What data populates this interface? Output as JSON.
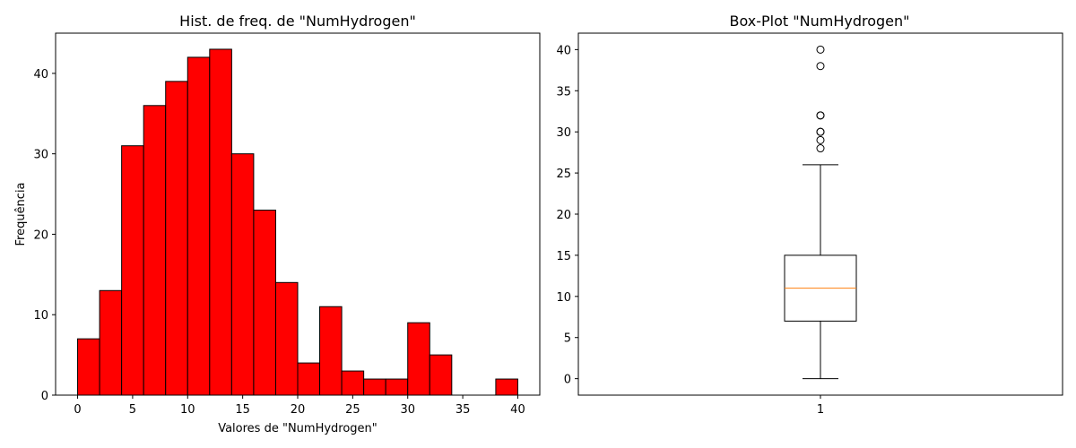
{
  "colors": {
    "bar_fill": "#ff0000",
    "bar_edge": "#000000",
    "median": "#ff7f0e",
    "box": "#000000"
  },
  "chart_data": [
    {
      "type": "bar",
      "title": "Hist. de freq. de \"NumHydrogen\"",
      "xlabel": "Valores de \"NumHydrogen\"",
      "ylabel": "Frequência",
      "xlim": [
        -2,
        42
      ],
      "ylim": [
        0,
        45
      ],
      "xticks": [
        0,
        5,
        10,
        15,
        20,
        25,
        30,
        35,
        40
      ],
      "yticks": [
        0,
        10,
        20,
        30,
        40
      ],
      "bin_edges": [
        0,
        2,
        4,
        6,
        8,
        10,
        12,
        14,
        16,
        18,
        20,
        22,
        24,
        26,
        28,
        30,
        32,
        34,
        36,
        38,
        40
      ],
      "values": [
        7,
        13,
        31,
        36,
        39,
        42,
        43,
        30,
        23,
        14,
        4,
        11,
        3,
        2,
        2,
        9,
        5,
        0,
        0,
        2
      ],
      "grid": false
    },
    {
      "type": "box",
      "title": "Box-Plot \"NumHydrogen\"",
      "xlabel": "",
      "ylabel": "",
      "ylim": [
        -2,
        42
      ],
      "yticks": [
        0,
        5,
        10,
        15,
        20,
        25,
        30,
        35,
        40
      ],
      "xticks": [
        "1"
      ],
      "whisker_low": 0,
      "q1": 7,
      "median": 11,
      "q3": 15,
      "whisker_high": 26,
      "outliers": [
        28,
        29,
        30,
        30,
        32,
        32,
        38,
        40
      ],
      "grid": false
    }
  ]
}
